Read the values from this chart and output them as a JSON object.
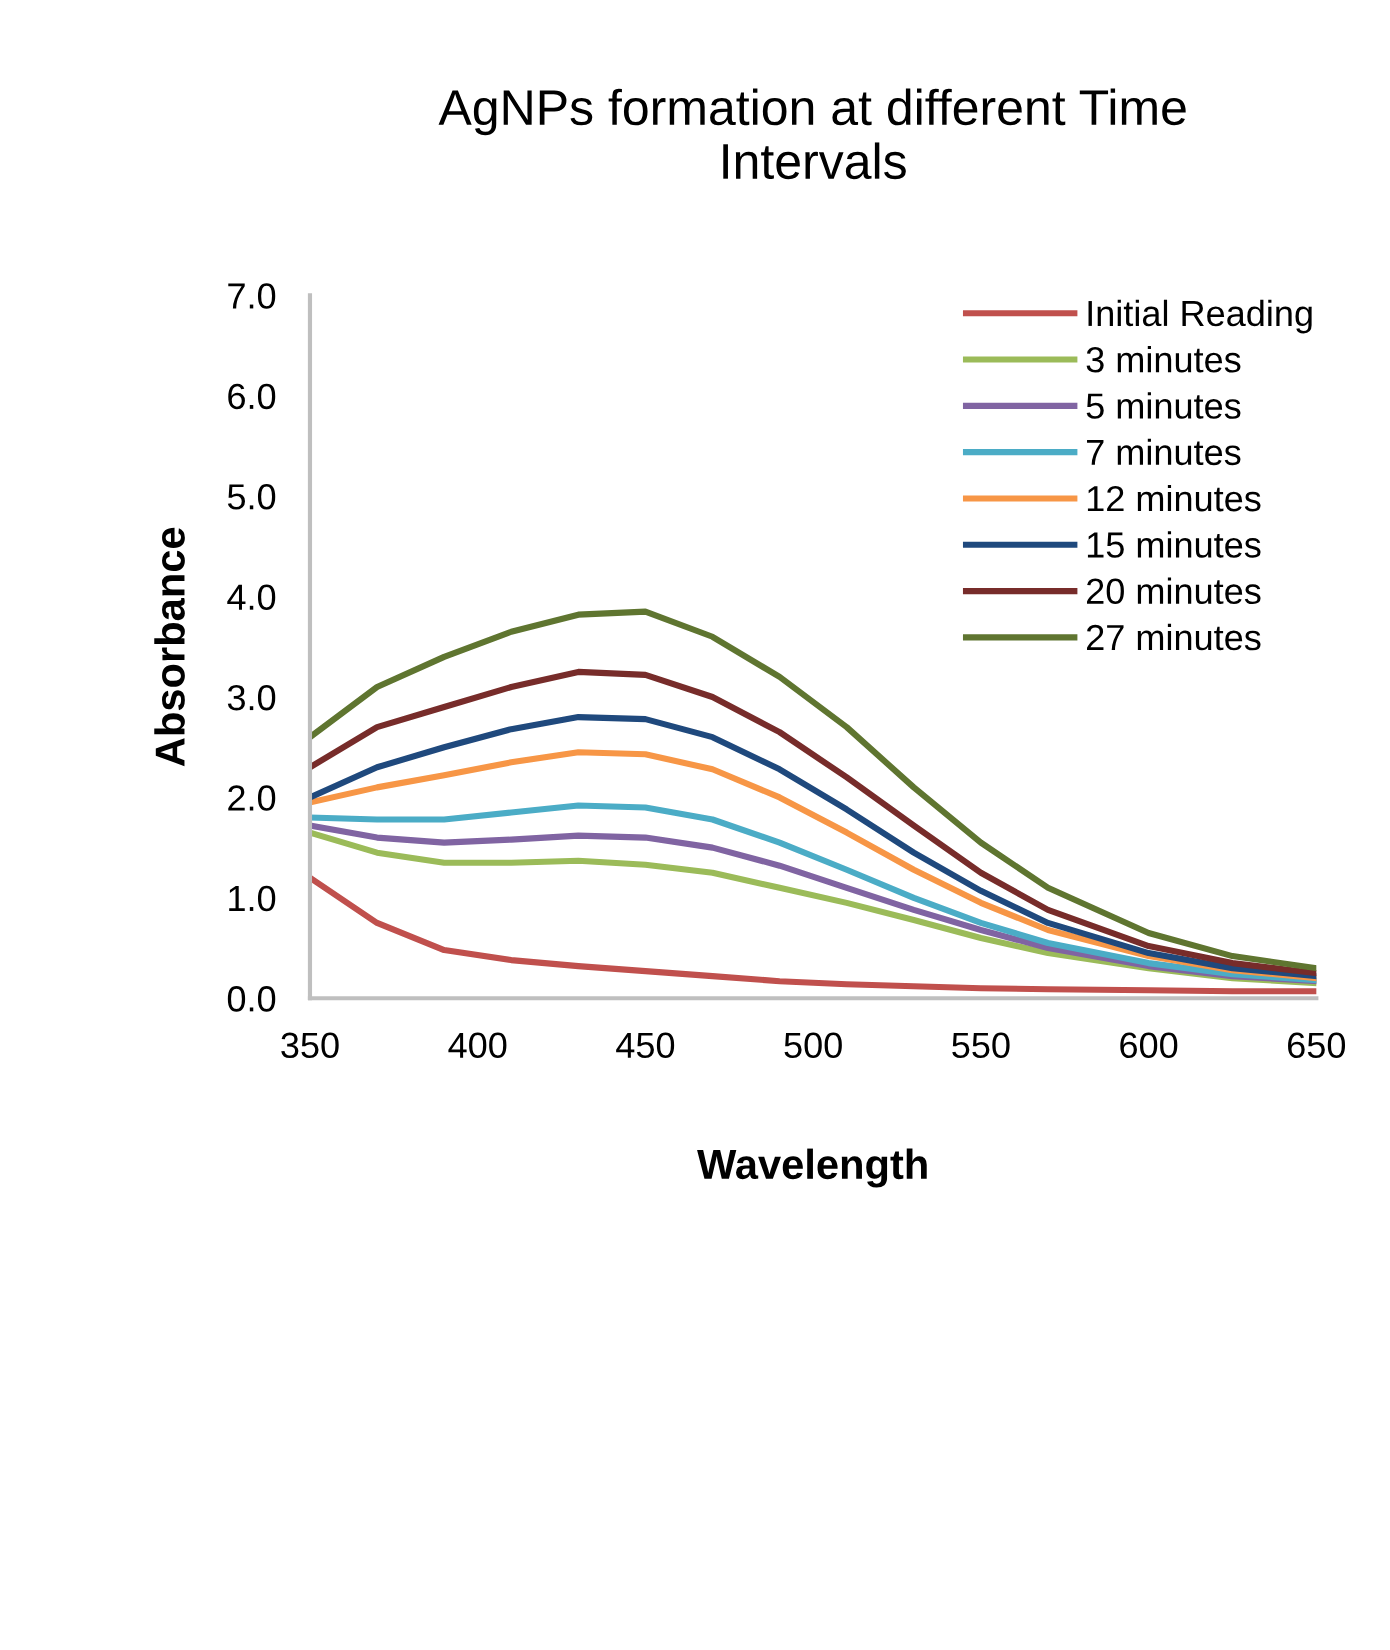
{
  "chart_data": {
    "type": "line",
    "title": "AgNPs formation at different Time\nIntervals",
    "xlabel": "Wavelength",
    "ylabel": "Absorbance",
    "x": [
      350,
      370,
      390,
      410,
      430,
      450,
      470,
      490,
      510,
      530,
      550,
      570,
      600,
      625,
      650
    ],
    "xlim": [
      350,
      650
    ],
    "xticks": [
      350,
      400,
      450,
      500,
      550,
      600,
      650
    ],
    "ylim": [
      0,
      7
    ],
    "yticks": [
      {
        "value": 0,
        "label": "0.0"
      },
      {
        "value": 1,
        "label": "1.0"
      },
      {
        "value": 2,
        "label": "2.0"
      },
      {
        "value": 3,
        "label": "3.0"
      },
      {
        "value": 4,
        "label": "4.0"
      },
      {
        "value": 5,
        "label": "5.0"
      },
      {
        "value": 6,
        "label": "6.0"
      },
      {
        "value": 7,
        "label": "7.0"
      }
    ],
    "grid": false,
    "legend": "top right",
    "marker": "none",
    "line_style": "solid",
    "series": [
      {
        "name": "Initial Reading",
        "color": "#c0504d",
        "values": [
          1.2,
          0.75,
          0.48,
          0.38,
          0.32,
          0.27,
          0.22,
          0.17,
          0.14,
          0.12,
          0.1,
          0.09,
          0.08,
          0.07,
          0.07
        ]
      },
      {
        "name": "3 minutes",
        "color": "#9bbb59",
        "values": [
          1.65,
          1.45,
          1.35,
          1.35,
          1.37,
          1.33,
          1.25,
          1.1,
          0.95,
          0.78,
          0.6,
          0.45,
          0.3,
          0.2,
          0.15
        ]
      },
      {
        "name": "5 minutes",
        "color": "#8064a2",
        "values": [
          1.72,
          1.6,
          1.55,
          1.58,
          1.62,
          1.6,
          1.5,
          1.32,
          1.1,
          0.88,
          0.68,
          0.5,
          0.32,
          0.22,
          0.17
        ]
      },
      {
        "name": "7 minutes",
        "color": "#4bacc6",
        "values": [
          1.8,
          1.78,
          1.78,
          1.85,
          1.92,
          1.9,
          1.78,
          1.55,
          1.28,
          1.0,
          0.75,
          0.55,
          0.35,
          0.24,
          0.18
        ]
      },
      {
        "name": "12 minutes",
        "color": "#f79646",
        "values": [
          1.95,
          2.1,
          2.22,
          2.35,
          2.45,
          2.43,
          2.28,
          2.0,
          1.65,
          1.28,
          0.95,
          0.68,
          0.42,
          0.28,
          0.2
        ]
      },
      {
        "name": "15 minutes",
        "color": "#1f497d",
        "values": [
          2.0,
          2.3,
          2.5,
          2.68,
          2.8,
          2.78,
          2.6,
          2.28,
          1.88,
          1.45,
          1.07,
          0.75,
          0.45,
          0.3,
          0.22
        ]
      },
      {
        "name": "20 minutes",
        "color": "#772c2a",
        "values": [
          2.3,
          2.7,
          2.9,
          3.1,
          3.25,
          3.22,
          3.0,
          2.65,
          2.2,
          1.72,
          1.25,
          0.88,
          0.52,
          0.35,
          0.25
        ]
      },
      {
        "name": "27 minutes",
        "color": "#5f7530",
        "values": [
          2.6,
          3.1,
          3.4,
          3.65,
          3.82,
          3.85,
          3.6,
          3.2,
          2.7,
          2.1,
          1.55,
          1.1,
          0.65,
          0.42,
          0.3
        ]
      }
    ]
  }
}
